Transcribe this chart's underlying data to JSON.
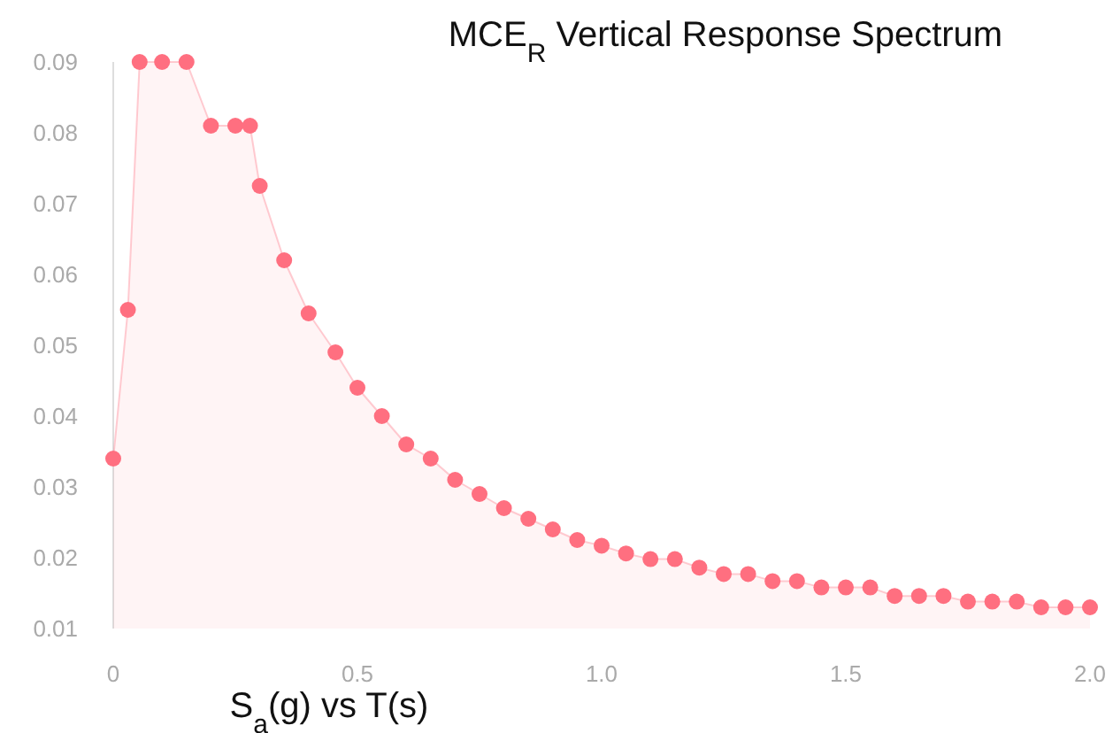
{
  "chart_data": {
    "type": "area",
    "title": "MCE$_{R}$ Vertical Response Spectrum",
    "xlabel": "S$_{a}$(g) vs T(s)",
    "x": [
      0,
      0.03,
      0.054,
      0.1,
      0.15,
      0.2,
      0.25,
      0.28,
      0.3,
      0.35,
      0.4,
      0.455,
      0.5,
      0.55,
      0.6,
      0.65,
      0.7,
      0.75,
      0.8,
      0.85,
      0.9,
      0.95,
      1.0,
      1.05,
      1.1,
      1.15,
      1.2,
      1.25,
      1.3,
      1.35,
      1.4,
      1.45,
      1.5,
      1.55,
      1.6,
      1.65,
      1.7,
      1.75,
      1.8,
      1.85,
      1.9,
      1.95,
      2.0
    ],
    "series": [
      {
        "color": "#ff6f80",
        "values": [
          0.034,
          0.055,
          0.09,
          0.09,
          0.09,
          0.081,
          0.081,
          0.081,
          0.0725,
          0.062,
          0.0545,
          0.049,
          0.044,
          0.04,
          0.036,
          0.034,
          0.031,
          0.029,
          0.027,
          0.0255,
          0.024,
          0.0225,
          0.0217,
          0.0206,
          0.0198,
          0.0198,
          0.0186,
          0.0177,
          0.0177,
          0.0167,
          0.0167,
          0.0158,
          0.0158,
          0.0158,
          0.0146,
          0.0146,
          0.0146,
          0.0138,
          0.0138,
          0.0138,
          0.013,
          0.013,
          0.013
        ]
      }
    ],
    "xlim": [
      0,
      2
    ],
    "xticks": [
      0,
      {
        "value": 0.5,
        "label": "0.5"
      },
      {
        "value": 1,
        "label": "1.0"
      },
      {
        "value": 1.5,
        "label": "1.5"
      },
      {
        "value": 2,
        "label": "2.0"
      }
    ],
    "ylim": [
      0.01,
      0.09
    ],
    "yticks": [
      0.01,
      0.02,
      0.03,
      0.04,
      0.05,
      0.06,
      0.07,
      0.08,
      0.09
    ],
    "marker": "circle",
    "grid": false
  }
}
